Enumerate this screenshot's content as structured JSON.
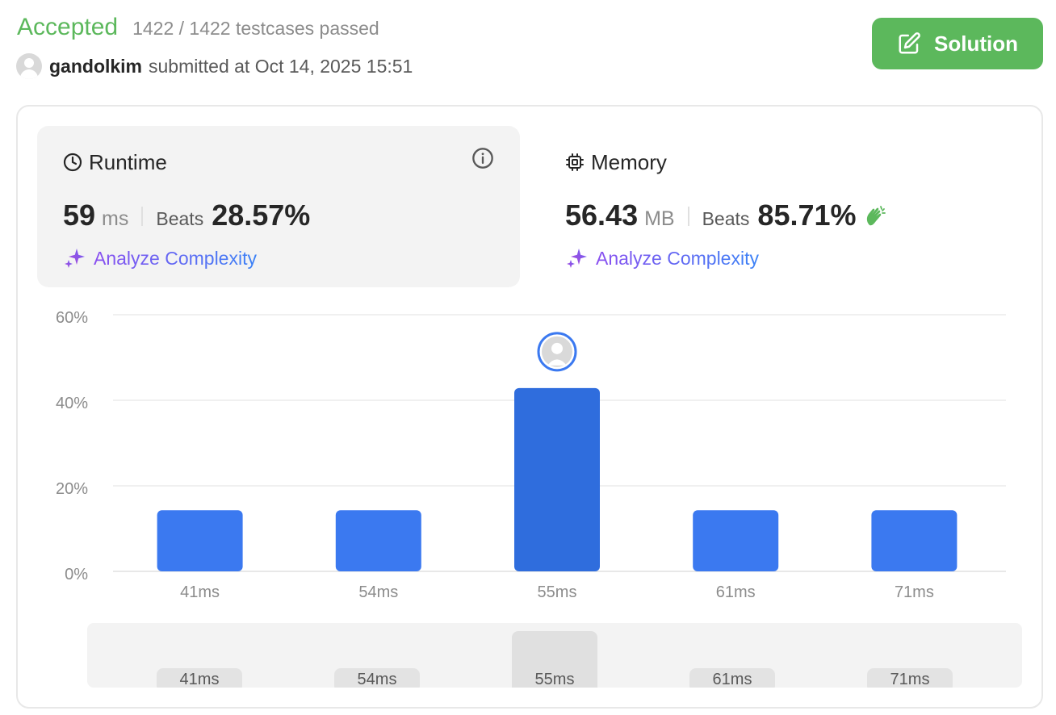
{
  "header": {
    "status": "Accepted",
    "testcases": "1422 / 1422 testcases passed",
    "username": "gandolkim",
    "submitted_text": "submitted at Oct 14, 2025 15:51",
    "solution_label": "Solution"
  },
  "runtime": {
    "label": "Runtime",
    "value": "59",
    "unit": "ms",
    "beats_label": "Beats",
    "beats_value": "28.57%",
    "analyze_label": "Analyze Complexity"
  },
  "memory": {
    "label": "Memory",
    "value": "56.43",
    "unit": "MB",
    "beats_label": "Beats",
    "beats_value": "85.71%",
    "analyze_label": "Analyze Complexity"
  },
  "colors": {
    "accepted": "#5cb85c",
    "bar": "#3b79f0",
    "bar_selected": "#2f6ddd",
    "analyze_start": "#8a4ff0",
    "analyze_end": "#3b82f6"
  },
  "chart_data": {
    "type": "bar",
    "categories": [
      "41ms",
      "54ms",
      "55ms",
      "61ms",
      "71ms"
    ],
    "values": [
      14.29,
      14.29,
      42.86,
      14.29,
      14.29
    ],
    "highlighted": "55ms",
    "yticks": [
      "0%",
      "20%",
      "40%",
      "60%"
    ],
    "ylim": [
      0,
      60
    ],
    "grid": true,
    "xlabel": "",
    "ylabel": ""
  },
  "brush": {
    "labels": [
      "41ms",
      "54ms",
      "55ms",
      "61ms",
      "71ms"
    ],
    "selected": "55ms"
  }
}
